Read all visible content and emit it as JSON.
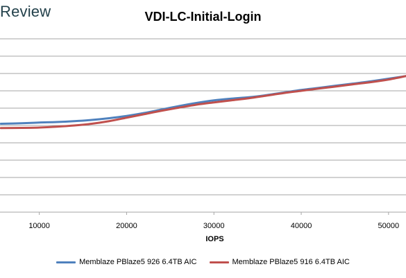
{
  "brand": "Review",
  "chart_data": {
    "type": "line",
    "title": "VDI-LC-Initial-Login",
    "xlabel": "IOPS",
    "ylabel": "",
    "xlim": [
      5500,
      52000
    ],
    "ylim": [
      0,
      10
    ],
    "x_ticks": [
      10000,
      20000,
      30000,
      40000,
      50000
    ],
    "y_gridlines": [
      1,
      2,
      3,
      4,
      5,
      6,
      7,
      8,
      9
    ],
    "y_tick_labels_visible": false,
    "grid": true,
    "legend_position": "bottom",
    "series": [
      {
        "name": "Memblaze PBlaze5 926 6.4TB AIC",
        "color": "#4f81bd",
        "points": [
          [
            5600,
            5.1
          ],
          [
            8000,
            5.13
          ],
          [
            10000,
            5.17
          ],
          [
            12000,
            5.2
          ],
          [
            14000,
            5.25
          ],
          [
            16000,
            5.32
          ],
          [
            18000,
            5.42
          ],
          [
            20000,
            5.55
          ],
          [
            22000,
            5.72
          ],
          [
            24000,
            5.92
          ],
          [
            26000,
            6.12
          ],
          [
            28000,
            6.3
          ],
          [
            30000,
            6.45
          ],
          [
            32000,
            6.55
          ],
          [
            34000,
            6.63
          ],
          [
            36000,
            6.75
          ],
          [
            38000,
            6.9
          ],
          [
            40000,
            7.05
          ],
          [
            42000,
            7.17
          ],
          [
            44000,
            7.3
          ],
          [
            46000,
            7.42
          ],
          [
            48000,
            7.55
          ],
          [
            50000,
            7.7
          ],
          [
            52000,
            7.85
          ]
        ]
      },
      {
        "name": "Memblaze PBlaze5 916 6.4TB AIC",
        "color": "#c0504d",
        "points": [
          [
            5600,
            4.85
          ],
          [
            8000,
            4.86
          ],
          [
            10000,
            4.88
          ],
          [
            12000,
            4.93
          ],
          [
            14000,
            5.0
          ],
          [
            16000,
            5.1
          ],
          [
            18000,
            5.25
          ],
          [
            20000,
            5.45
          ],
          [
            22000,
            5.65
          ],
          [
            24000,
            5.85
          ],
          [
            26000,
            6.03
          ],
          [
            28000,
            6.2
          ],
          [
            30000,
            6.33
          ],
          [
            32000,
            6.45
          ],
          [
            34000,
            6.57
          ],
          [
            36000,
            6.72
          ],
          [
            38000,
            6.87
          ],
          [
            40000,
            7.0
          ],
          [
            42000,
            7.13
          ],
          [
            44000,
            7.25
          ],
          [
            46000,
            7.38
          ],
          [
            48000,
            7.5
          ],
          [
            50000,
            7.65
          ],
          [
            52000,
            7.85
          ]
        ]
      }
    ]
  }
}
